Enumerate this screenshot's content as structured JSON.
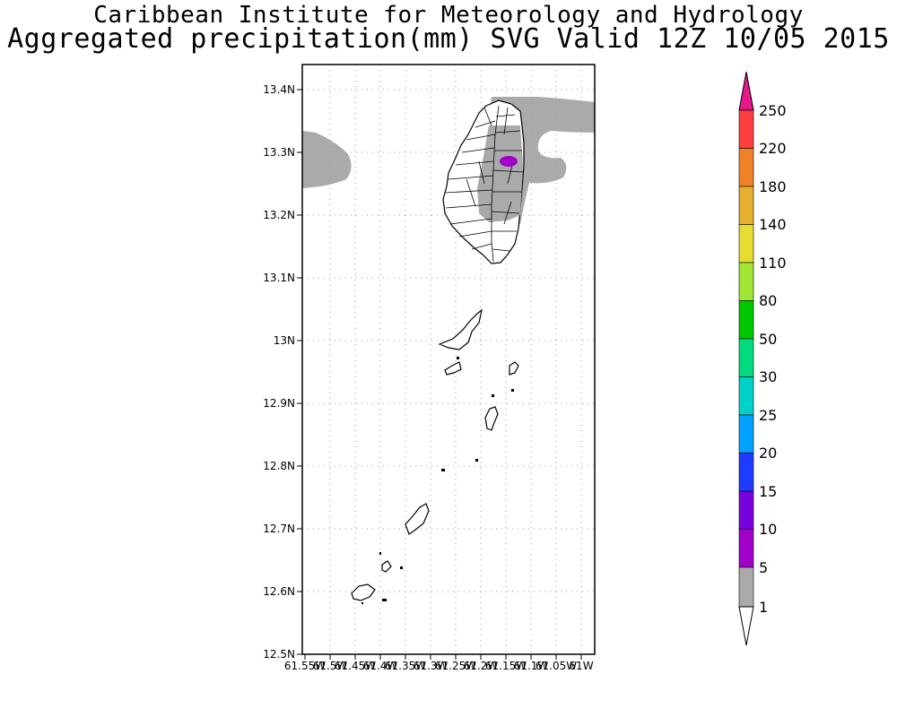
{
  "header": {
    "title": "Caribbean Institute for Meteorology and Hydrology",
    "subtitle": "Aggregated precipitation(mm) SVG Valid 12Z 10/05 2015"
  },
  "map": {
    "lat_labels": [
      "13.4N",
      "13.3N",
      "13.2N",
      "13.1N",
      "13N",
      "12.9N",
      "12.8N",
      "12.7N",
      "12.6N",
      "12.5N"
    ],
    "lon_labels": [
      "61.55W",
      "61.5W",
      "61.45W",
      "61.4W",
      "61.35W",
      "61.3W",
      "61.25W",
      "61.2W",
      "61.15W",
      "61.1W",
      "61.05W",
      "61W"
    ],
    "lat_range": [
      12.5,
      13.4
    ],
    "lon_range": [
      "61.55W",
      "61W"
    ],
    "grid": true,
    "colors": {
      "precip_1_5": "#aaaaaa",
      "precip_5_10": "#a000c8",
      "coastline": "#000000"
    }
  },
  "colorbar": {
    "levels": [
      "250",
      "220",
      "180",
      "140",
      "110",
      "80",
      "50",
      "30",
      "25",
      "20",
      "15",
      "10",
      "5",
      "1"
    ],
    "colors": [
      "#ff3f3f",
      "#f08228",
      "#e6af2d",
      "#e6dc32",
      "#a0e632",
      "#00c800",
      "#00dc7d",
      "#00d2c8",
      "#00a0ff",
      "#1e3cff",
      "#7800dc",
      "#a000c8",
      "#aaaaaa"
    ],
    "top_arrow_color": "#e6198c",
    "bottom_arrow_color": "#ffffff"
  }
}
